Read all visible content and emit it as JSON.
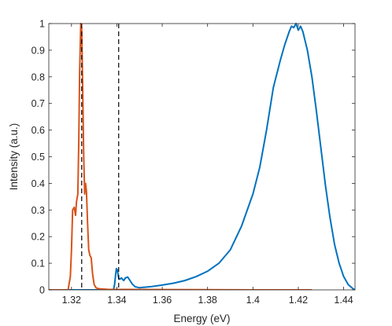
{
  "chart_data": {
    "type": "line",
    "xlabel": "Energy (eV)",
    "ylabel": "Intensity (a.u.)",
    "xlim": [
      1.31,
      1.445
    ],
    "ylim": [
      0,
      1
    ],
    "xticks": [
      1.32,
      1.34,
      1.36,
      1.38,
      1.4,
      1.42,
      1.44
    ],
    "xtick_labels": [
      "1.32",
      "1.34",
      "1.36",
      "1.38",
      "1.4",
      "1.42",
      "1.44"
    ],
    "yticks": [
      0,
      0.1,
      0.2,
      0.3,
      0.4,
      0.5,
      0.6,
      0.7,
      0.8,
      0.9,
      1
    ],
    "ytick_labels": [
      "0",
      "0.1",
      "0.2",
      "0.3",
      "0.4",
      "0.5",
      "0.6",
      "0.7",
      "0.8",
      "0.9",
      "1"
    ],
    "grid": false,
    "box": true,
    "series": [
      {
        "color": "#0072BD",
        "x": [
          1.31,
          1.3385,
          1.339,
          1.3395,
          1.3398,
          1.3402,
          1.3408,
          1.3413,
          1.342,
          1.343,
          1.3438,
          1.3448,
          1.3458,
          1.3468,
          1.348,
          1.35,
          1.355,
          1.36,
          1.365,
          1.37,
          1.375,
          1.38,
          1.385,
          1.39,
          1.395,
          1.4,
          1.403,
          1.406,
          1.409,
          1.412,
          1.414,
          1.416,
          1.417,
          1.418,
          1.419,
          1.42,
          1.421,
          1.422,
          1.424,
          1.426,
          1.428,
          1.43,
          1.432,
          1.434,
          1.436,
          1.438,
          1.44,
          1.442,
          1.444,
          1.445
        ],
        "y": [
          0.0,
          0.0,
          0.02,
          0.06,
          0.08,
          0.075,
          0.045,
          0.04,
          0.045,
          0.035,
          0.045,
          0.048,
          0.035,
          0.022,
          0.012,
          0.008,
          0.012,
          0.018,
          0.025,
          0.035,
          0.05,
          0.07,
          0.1,
          0.15,
          0.24,
          0.36,
          0.46,
          0.6,
          0.76,
          0.86,
          0.92,
          0.97,
          0.99,
          0.985,
          1.0,
          0.975,
          0.99,
          0.97,
          0.9,
          0.8,
          0.67,
          0.53,
          0.39,
          0.27,
          0.17,
          0.1,
          0.05,
          0.02,
          0.005,
          0.0
        ]
      },
      {
        "color": "#D95319",
        "x": [
          1.31,
          1.3185,
          1.3195,
          1.32,
          1.3205,
          1.3212,
          1.3218,
          1.3222,
          1.3228,
          1.3232,
          1.3236,
          1.3241,
          1.3245,
          1.3249,
          1.3254,
          1.3258,
          1.3262,
          1.3266,
          1.3271,
          1.3276,
          1.3281,
          1.3287,
          1.3293,
          1.33,
          1.3308,
          1.332,
          1.336,
          1.36,
          1.4,
          1.426
        ],
        "y": [
          0.0,
          0.0,
          0.05,
          0.15,
          0.3,
          0.31,
          0.28,
          0.33,
          0.36,
          0.55,
          0.82,
          1.0,
          0.98,
          0.78,
          0.5,
          0.36,
          0.4,
          0.37,
          0.25,
          0.15,
          0.13,
          0.12,
          0.06,
          0.02,
          0.008,
          0.004,
          0.002,
          0.001,
          0.0,
          0.0
        ]
      }
    ],
    "vlines": [
      {
        "x": 1.3245,
        "style": "dashed",
        "color": "#000000"
      },
      {
        "x": 1.3408,
        "style": "dashed",
        "color": "#000000"
      }
    ]
  }
}
